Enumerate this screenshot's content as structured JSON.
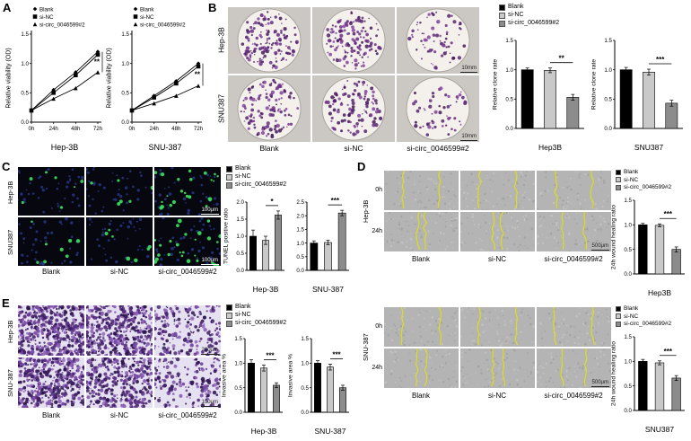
{
  "conditions": [
    "Blank",
    "si-NC",
    "si-circ_0046599#2"
  ],
  "colors": {
    "blank": "#000000",
    "nc": "#c9c9c9",
    "circ": "#8c8c8c"
  },
  "panels": {
    "A": {
      "label": "A",
      "hep": {
        "type": "line",
        "ylabel": "Relative viability (OD)",
        "xlabel": "Hep-3B",
        "x": [
          "0h",
          "24h",
          "48h",
          "72h"
        ],
        "ylim": [
          0,
          1.5
        ],
        "yticks": [
          0,
          0.5,
          1,
          1.5
        ],
        "series": [
          {
            "name": "Blank",
            "marker": "diamond",
            "values": [
              0.2,
              0.55,
              0.85,
              1.2
            ]
          },
          {
            "name": "si-NC",
            "marker": "square",
            "values": [
              0.2,
              0.5,
              0.8,
              1.15
            ]
          },
          {
            "name": "si-circ_0046599#2",
            "marker": "triangle",
            "values": [
              0.2,
              0.4,
              0.58,
              0.85
            ]
          }
        ],
        "sig": "**"
      },
      "snu": {
        "type": "line",
        "ylabel": "Relative viability (OD)",
        "xlabel": "SNU-387",
        "x": [
          "0h",
          "24h",
          "48h",
          "72h"
        ],
        "ylim": [
          0,
          1.5
        ],
        "yticks": [
          0,
          0.5,
          1,
          1.5
        ],
        "series": [
          {
            "name": "Blank",
            "marker": "diamond",
            "values": [
              0.2,
              0.45,
              0.7,
              1.0
            ]
          },
          {
            "name": "si-NC",
            "marker": "square",
            "values": [
              0.2,
              0.42,
              0.66,
              0.95
            ]
          },
          {
            "name": "si-circ_0046599#2",
            "marker": "triangle",
            "values": [
              0.2,
              0.32,
              0.45,
              0.62
            ]
          }
        ],
        "sig": "**"
      }
    },
    "B": {
      "label": "B",
      "rows": [
        "Hep-3B",
        "SNU387"
      ],
      "scalebar": "10mm",
      "hep_chart": {
        "type": "bar",
        "ylabel": "Relative clone rate",
        "xlabel": "Hep3B",
        "ylim": [
          0,
          1.5
        ],
        "yticks": [
          0,
          0.5,
          1,
          1.5
        ],
        "categories": [
          "Blank",
          "si-NC",
          "si-circ_0046599#2"
        ],
        "values": [
          1.0,
          0.99,
          0.53
        ],
        "errors": [
          0.03,
          0.04,
          0.05
        ],
        "sig": {
          "label": "**",
          "from": 1,
          "to": 2
        }
      },
      "snu_chart": {
        "type": "bar",
        "ylabel": "Relative clone rate",
        "xlabel": "SNU387",
        "ylim": [
          0,
          1.5
        ],
        "yticks": [
          0,
          0.5,
          1,
          1.5
        ],
        "categories": [
          "Blank",
          "si-NC",
          "si-circ_0046599#2"
        ],
        "values": [
          1.0,
          0.96,
          0.43
        ],
        "errors": [
          0.04,
          0.05,
          0.05
        ],
        "sig": {
          "label": "***",
          "from": 1,
          "to": 2
        }
      }
    },
    "C": {
      "label": "C",
      "rows": [
        "Hep-3B",
        "SNU387"
      ],
      "scalebar": "100μm",
      "hep_chart": {
        "type": "bar",
        "ylabel": "TUNEL positive ratio",
        "xlabel": "Hep-3B",
        "ylim": [
          0,
          2
        ],
        "yticks": [
          0,
          0.5,
          1,
          1.5,
          2
        ],
        "categories": [
          "Blank",
          "si-NC",
          "si-circ_0046599#2"
        ],
        "values": [
          1.0,
          0.88,
          1.62
        ],
        "errors": [
          0.18,
          0.12,
          0.12
        ],
        "sig": {
          "label": "*",
          "from": 1,
          "to": 2
        }
      },
      "snu_chart": {
        "type": "bar",
        "ylabel": "",
        "xlabel": "SNU-387",
        "ylim": [
          0,
          2.5
        ],
        "yticks": [
          0,
          0.5,
          1,
          1.5,
          2,
          2.5
        ],
        "categories": [
          "Blank",
          "si-NC",
          "si-circ_0046599#2"
        ],
        "values": [
          1.0,
          1.02,
          2.1
        ],
        "errors": [
          0.08,
          0.08,
          0.1
        ],
        "sig": {
          "label": "***",
          "from": 1,
          "to": 2
        }
      }
    },
    "D": {
      "label": "D",
      "scalebar": "500μm",
      "blocks": [
        {
          "row_label": "Hep-3B",
          "time_labels": [
            "0h",
            "24h"
          ],
          "chart": {
            "type": "bar",
            "ylabel": "24h wound healing ratio",
            "xlabel": "Hep3B",
            "ylim": [
              0,
              1.5
            ],
            "yticks": [
              0,
              0.5,
              1,
              1.5
            ],
            "categories": [
              "Blank",
              "si-NC",
              "si-circ_0046599#2"
            ],
            "values": [
              1.0,
              0.99,
              0.5
            ],
            "errors": [
              0.03,
              0.03,
              0.05
            ],
            "sig": {
              "label": "***",
              "from": 1,
              "to": 2
            }
          }
        },
        {
          "row_label": "SNU-387",
          "time_labels": [
            "0h",
            "24h"
          ],
          "chart": {
            "type": "bar",
            "ylabel": "24h wound healing ratio",
            "xlabel": "SNU387",
            "ylim": [
              0,
              1.5
            ],
            "yticks": [
              0,
              0.5,
              1,
              1.5
            ],
            "categories": [
              "Blank",
              "si-NC",
              "si-circ_0046599#2"
            ],
            "values": [
              1.0,
              0.97,
              0.66
            ],
            "errors": [
              0.04,
              0.04,
              0.05
            ],
            "sig": {
              "label": "***",
              "from": 1,
              "to": 2
            }
          }
        }
      ]
    },
    "E": {
      "label": "E",
      "rows": [
        "Hep-3B",
        "SNU-387"
      ],
      "scalebars": [
        "200μm",
        "100μm"
      ],
      "hep_chart": {
        "type": "bar",
        "ylabel": "Invasive area %",
        "xlabel": "Hep-3B",
        "ylim": [
          0,
          1.5
        ],
        "yticks": [
          0,
          0.5,
          1,
          1.5
        ],
        "categories": [
          "Blank",
          "si-NC",
          "si-circ_0046599#2"
        ],
        "values": [
          1.0,
          0.9,
          0.55
        ],
        "errors": [
          0.07,
          0.06,
          0.05
        ],
        "sig": {
          "label": "***",
          "from": 1,
          "to": 2
        }
      },
      "snu_chart": {
        "type": "bar",
        "ylabel": "Invasive area %",
        "xlabel": "SNU-387",
        "ylim": [
          0,
          1.5
        ],
        "yticks": [
          0,
          0.5,
          1,
          1.5
        ],
        "categories": [
          "Blank",
          "si-NC",
          "si-circ_0046599#2"
        ],
        "values": [
          1.0,
          0.92,
          0.5
        ],
        "errors": [
          0.05,
          0.06,
          0.05
        ],
        "sig": {
          "label": "***",
          "from": 1,
          "to": 2
        }
      }
    }
  }
}
